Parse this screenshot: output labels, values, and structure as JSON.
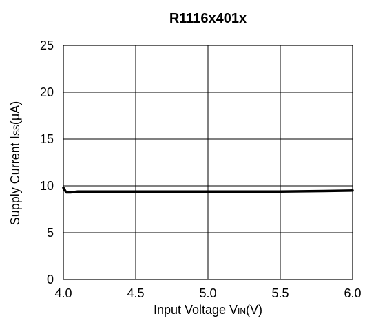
{
  "chart_data": {
    "type": "line",
    "title": "R1116x401x",
    "xlabel": {
      "main": "Input Voltage V",
      "sub": "IN",
      "tail": "(V)"
    },
    "ylabel": {
      "main": "Supply Current I",
      "sub": "SS",
      "tail": "(μA)"
    },
    "xlim": [
      4.0,
      6.0
    ],
    "ylim": [
      0,
      25
    ],
    "x_ticks": [
      "4.0",
      "4.5",
      "5.0",
      "5.5",
      "6.0"
    ],
    "y_ticks": [
      "0",
      "5",
      "10",
      "15",
      "20",
      "25"
    ],
    "grid": true,
    "series": [
      {
        "color": "#000000",
        "x": [
          4.0,
          4.02,
          4.05,
          4.1,
          4.2,
          4.5,
          5.0,
          5.5,
          5.8,
          6.0
        ],
        "y": [
          9.8,
          9.3,
          9.3,
          9.4,
          9.4,
          9.4,
          9.4,
          9.4,
          9.45,
          9.5
        ]
      }
    ]
  }
}
